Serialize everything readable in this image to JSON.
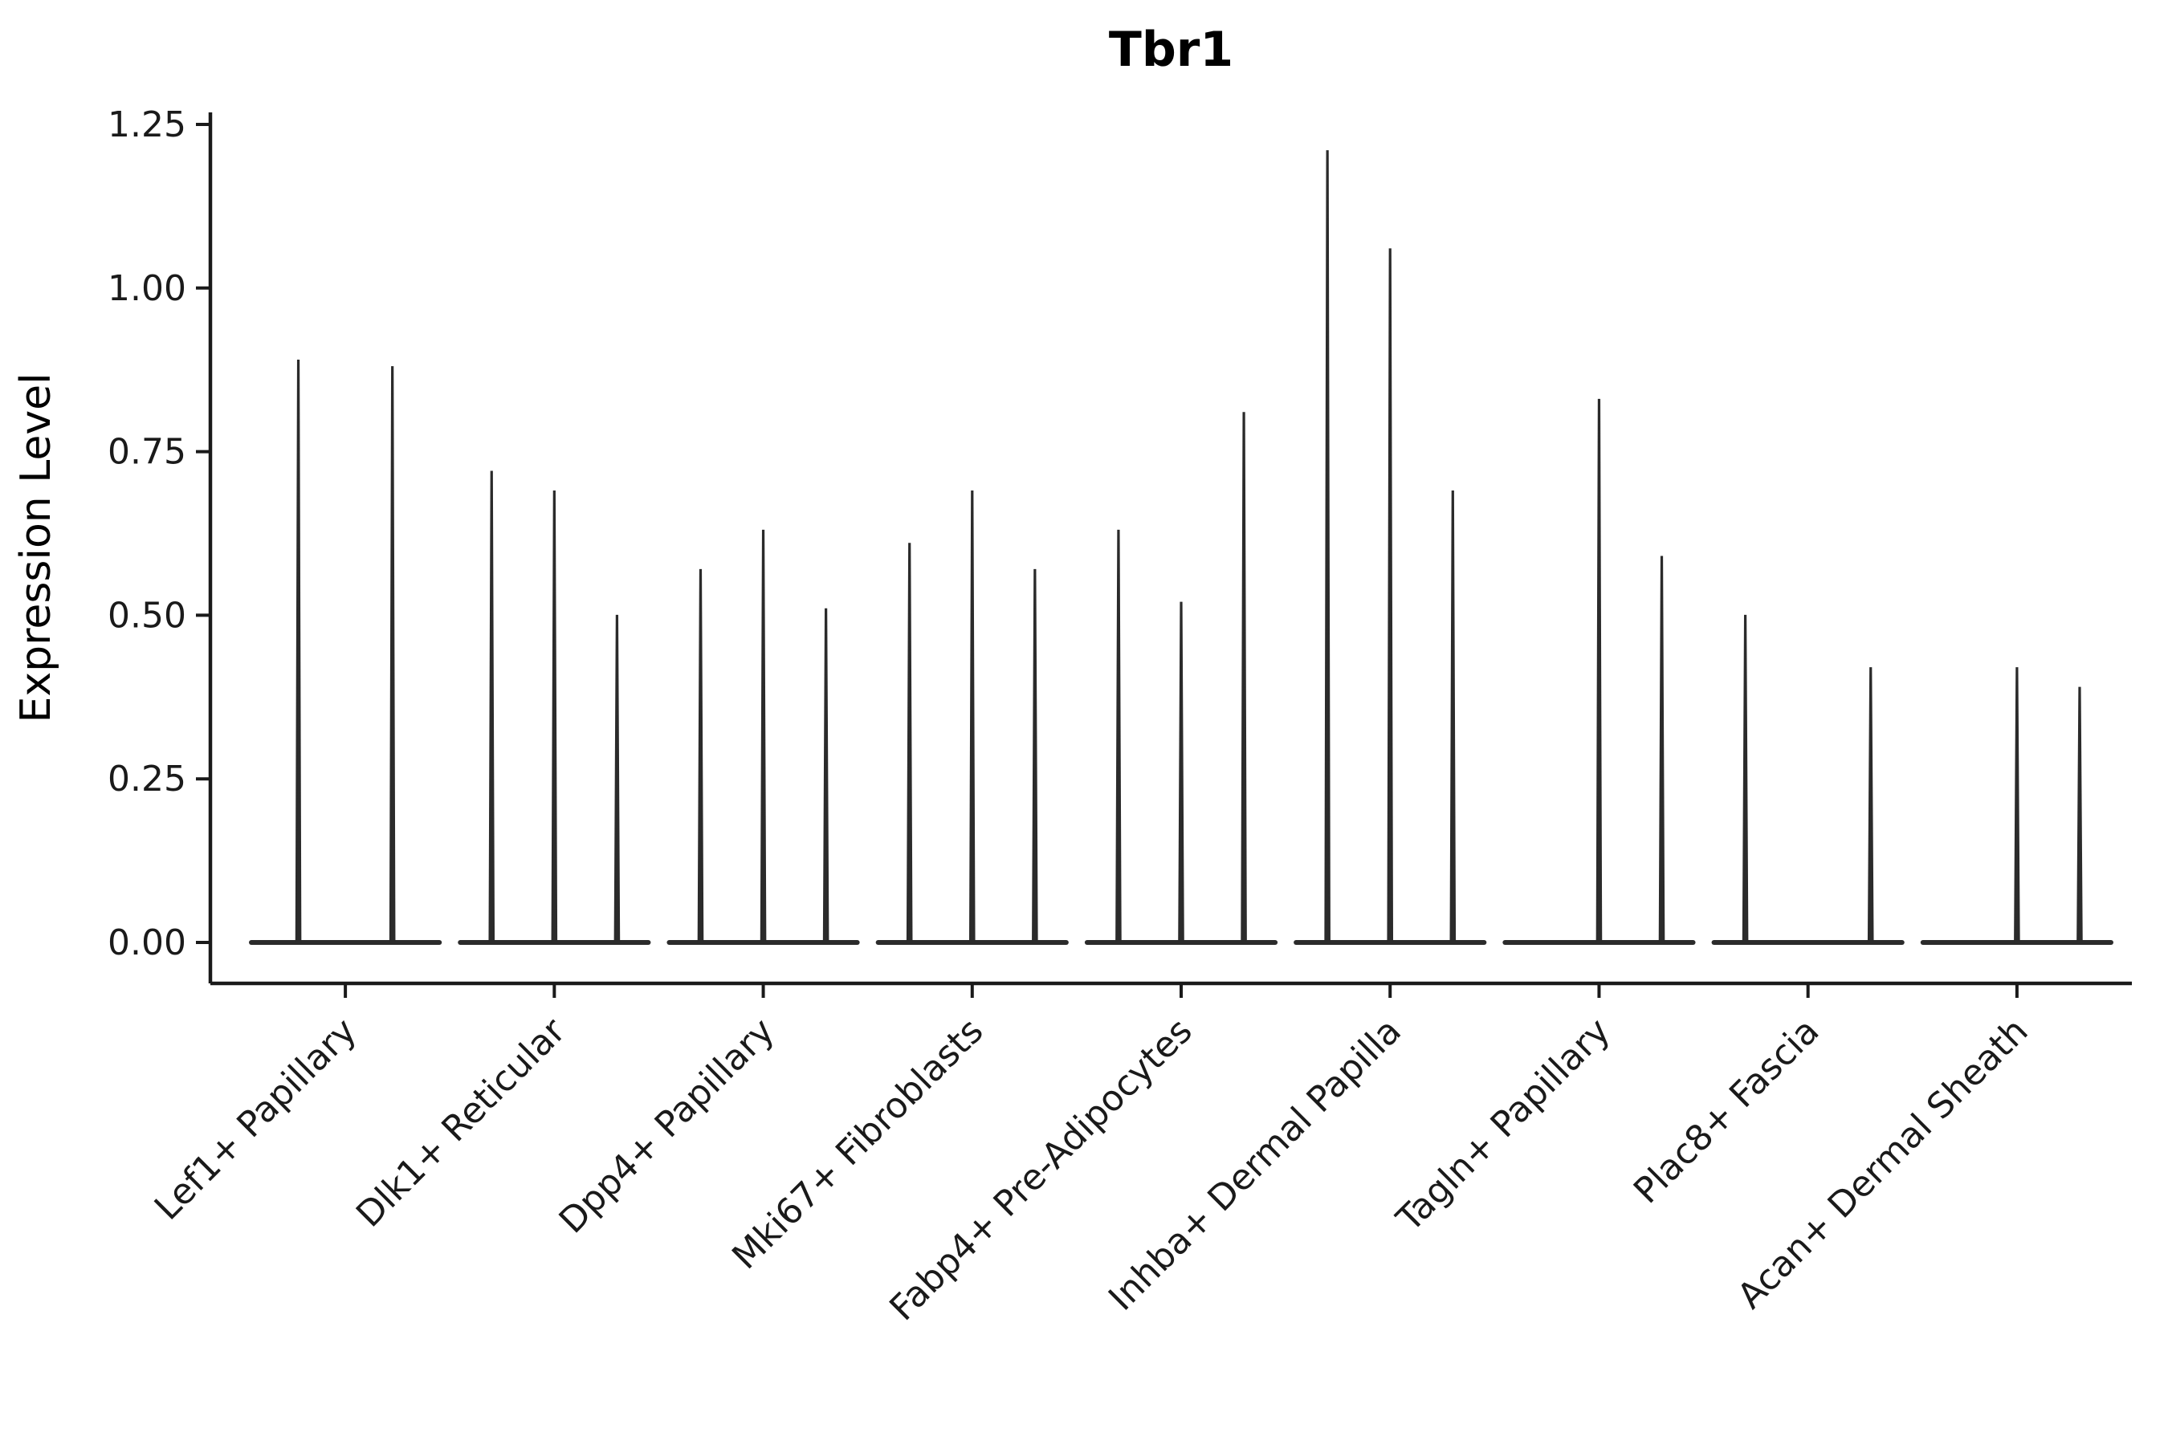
{
  "chart_data": {
    "type": "violin",
    "title": "Tbr1",
    "ylabel": "Expression Level",
    "xlabel": "",
    "ylim": [
      0,
      1.25
    ],
    "yticks": [
      0.0,
      0.25,
      0.5,
      0.75,
      1.0,
      1.25
    ],
    "ytick_labels": [
      "0.00",
      "0.25",
      "0.50",
      "0.75",
      "1.00",
      "1.25"
    ],
    "grid": false,
    "legend": "none",
    "axis_color": "#1a1a1a",
    "violin_color": "#2b2b2b",
    "background": "#ffffff",
    "categories": [
      {
        "label": "Lef1+ Papillary",
        "violin_maxima": [
          0.89,
          0.88
        ]
      },
      {
        "label": "Dlk1+ Reticular",
        "violin_maxima": [
          0.72,
          0.69,
          0.5
        ]
      },
      {
        "label": "Dpp4+ Papillary",
        "violin_maxima": [
          0.57,
          0.63,
          0.51
        ]
      },
      {
        "label": "Mki67+ Fibroblasts",
        "violin_maxima": [
          0.61,
          0.69,
          0.57
        ]
      },
      {
        "label": "Fabp4+ Pre-Adipocytes",
        "violin_maxima": [
          0.63,
          0.52,
          0.81
        ]
      },
      {
        "label": "Inhba+ Dermal Papilla",
        "violin_maxima": [
          1.21,
          1.06,
          0.69
        ]
      },
      {
        "label": "Tagln+ Papillary",
        "violin_maxima": [
          0.0,
          0.83,
          0.59
        ]
      },
      {
        "label": "Plac8+ Fascia",
        "violin_maxima": [
          0.5,
          0.0,
          0.42
        ]
      },
      {
        "label": "Acan+ Dermal Sheath",
        "violin_maxima": [
          0.0,
          0.42,
          0.39
        ]
      }
    ]
  }
}
